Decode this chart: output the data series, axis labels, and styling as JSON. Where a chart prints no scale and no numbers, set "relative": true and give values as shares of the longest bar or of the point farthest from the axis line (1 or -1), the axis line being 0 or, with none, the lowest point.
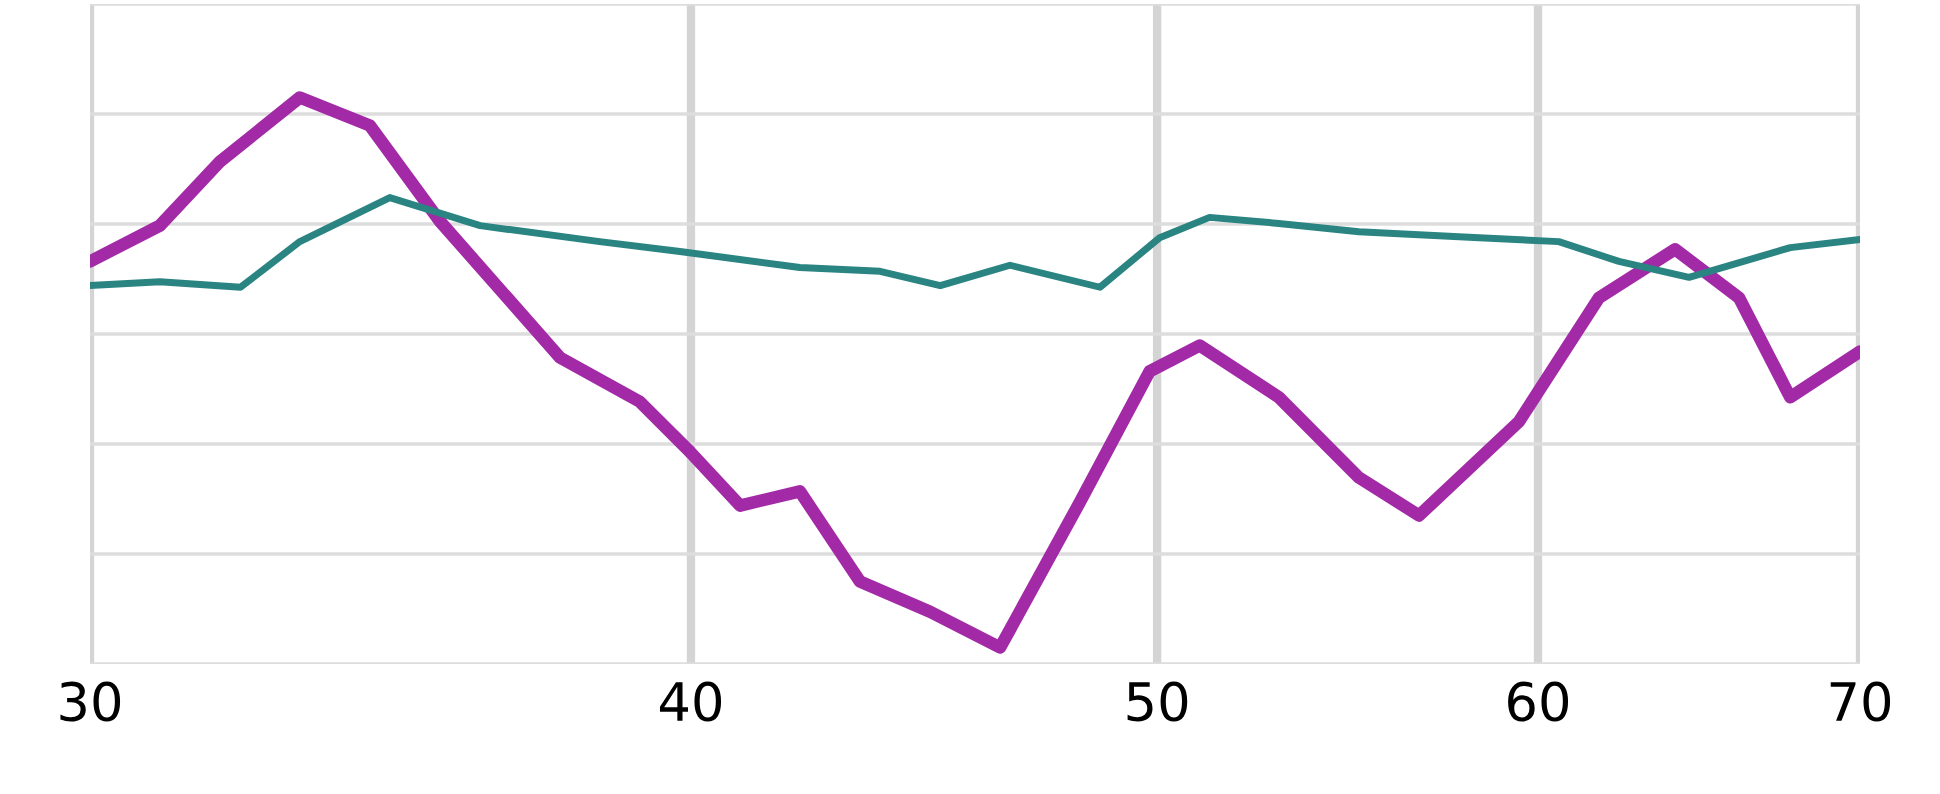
{
  "chart_data": {
    "type": "line",
    "relative": true,
    "log": "x",
    "xlim": [
      30,
      70
    ],
    "xticks": [
      30,
      40,
      50,
      60,
      70
    ],
    "grid": true,
    "tick_labels": "x",
    "series": [
      {
        "color": "#a32aa6",
        "x": [
          30.0,
          31.02,
          31.93,
          33.17,
          34.3,
          35.47,
          37.57,
          39.03,
          39.98,
          40.95,
          42.14,
          43.37,
          44.85,
          46.38,
          48.19,
          49.82,
          51.03,
          53.0,
          55.07,
          56.68,
          59.46,
          61.78,
          64.07,
          66.06,
          67.7,
          70.0
        ],
        "values": [
          0.702,
          0.767,
          0.884,
          1,
          0.949,
          0.775,
          0.527,
          0.447,
          0.356,
          0.258,
          0.284,
          0.12,
          0.065,
          0,
          0.265,
          0.502,
          0.549,
          0.455,
          0.309,
          0.24,
          0.411,
          0.636,
          0.724,
          0.636,
          0.455,
          0.538
        ]
      },
      {
        "color": "#2a8482",
        "x": [
          30.0,
          31.02,
          32.24,
          33.17,
          34.63,
          36.16,
          38.29,
          39.79,
          42.14,
          43.79,
          45.07,
          46.6,
          48.65,
          50.06,
          51.27,
          53.0,
          55.07,
          58.33,
          60.6,
          62.37,
          64.5,
          67.7,
          70.0
        ],
        "values": [
          0.658,
          0.665,
          0.655,
          0.738,
          0.818,
          0.767,
          0.738,
          0.72,
          0.691,
          0.684,
          0.658,
          0.695,
          0.655,
          0.745,
          0.782,
          0.771,
          0.756,
          0.745,
          0.738,
          0.702,
          0.673,
          0.727,
          0.742
        ]
      }
    ]
  }
}
